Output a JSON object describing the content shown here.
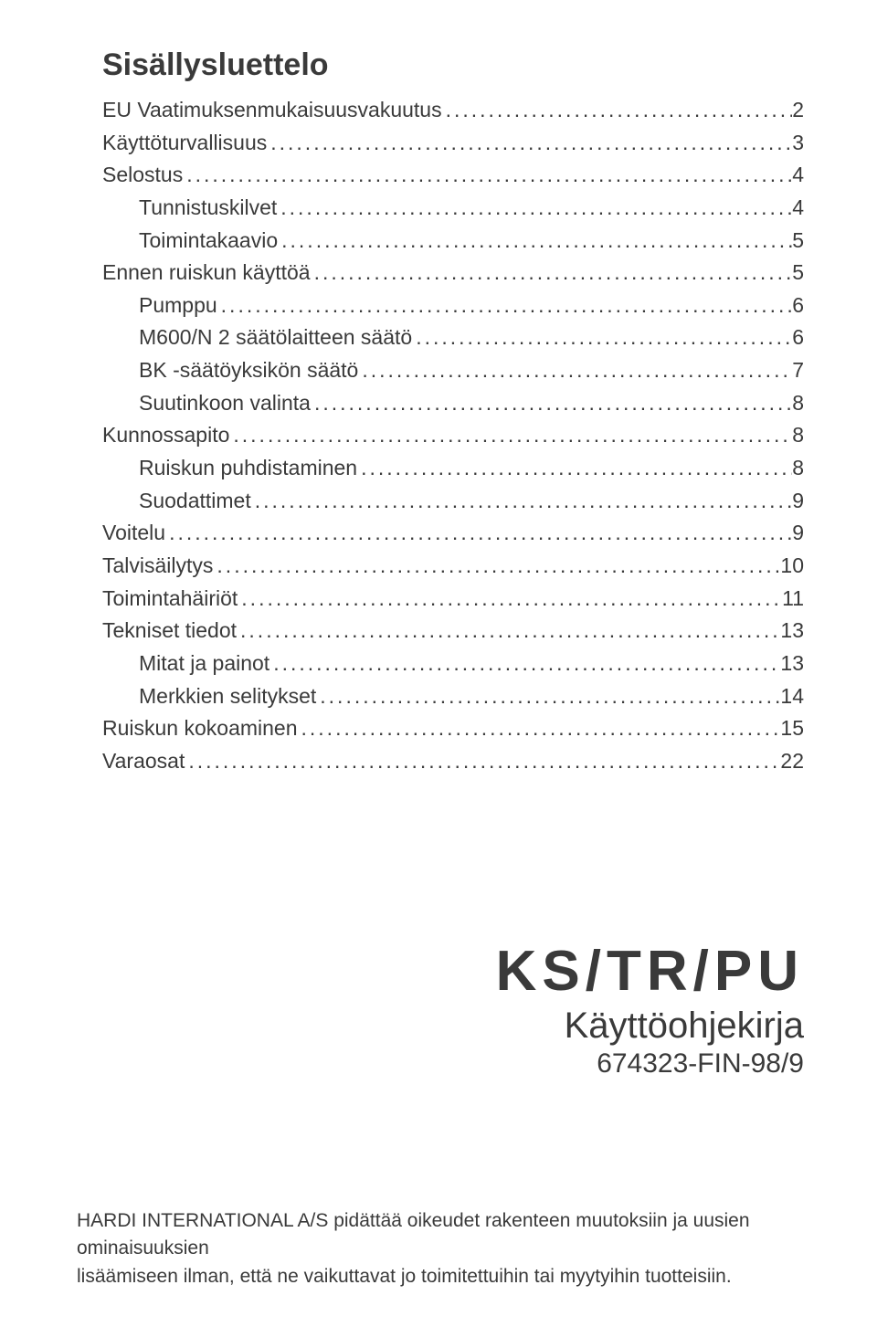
{
  "toc": {
    "title": "Sisällysluettelo",
    "entries": [
      {
        "label": "EU Vaatimuksenmukaisuusvakuutus",
        "page": "2",
        "indent": false
      },
      {
        "label": "Käyttöturvallisuus",
        "page": "3",
        "indent": false
      },
      {
        "label": "Selostus",
        "page": "4",
        "indent": false
      },
      {
        "label": "Tunnistuskilvet",
        "page": "4",
        "indent": true
      },
      {
        "label": "Toimintakaavio",
        "page": "5",
        "indent": true
      },
      {
        "label": "Ennen ruiskun käyttöä",
        "page": "5",
        "indent": false
      },
      {
        "label": "Pumppu",
        "page": "6",
        "indent": true
      },
      {
        "label": "M600/N 2 säätölaitteen säätö",
        "page": "6",
        "indent": true
      },
      {
        "label": "BK -säätöyksikön säätö",
        "page": "7",
        "indent": true
      },
      {
        "label": "Suutinkoon valinta",
        "page": "8",
        "indent": true
      },
      {
        "label": "Kunnossapito",
        "page": "8",
        "indent": false
      },
      {
        "label": "Ruiskun puhdistaminen",
        "page": "8",
        "indent": true
      },
      {
        "label": "Suodattimet",
        "page": "9",
        "indent": true
      },
      {
        "label": "Voitelu",
        "page": "9",
        "indent": false
      },
      {
        "label": "Talvisäilytys",
        "page": "10",
        "indent": false
      },
      {
        "label": "Toimintahäiriöt",
        "page": "11",
        "indent": false
      },
      {
        "label": "Tekniset tiedot",
        "page": "13",
        "indent": false
      },
      {
        "label": "Mitat ja painot",
        "page": "13",
        "indent": true
      },
      {
        "label": "Merkkien selitykset",
        "page": "14",
        "indent": true
      },
      {
        "label": "Ruiskun kokoaminen",
        "page": "15",
        "indent": false
      },
      {
        "label": "Varaosat",
        "page": "22",
        "indent": false
      }
    ]
  },
  "product": {
    "code": "KS/TR/PU",
    "subtitle": "Käyttöohjekirja",
    "docnum": "674323-FIN-98/9"
  },
  "footer": {
    "line1": "HARDI INTERNATIONAL A/S pidättää oikeudet rakenteen muutoksiin ja uusien ominaisuuksien",
    "line2": "lisäämiseen ilman, että ne vaikuttavat jo toimitettuihin tai myytyihin tuotteisiin."
  },
  "style": {
    "text_color": "#3a3a3a",
    "background_color": "#ffffff",
    "title_fontsize": 34,
    "toc_fontsize": 23,
    "product_code_fontsize": 62,
    "product_subtitle_fontsize": 40,
    "product_docnum_fontsize": 30,
    "footer_fontsize": 21,
    "dot_fill": "...................................................................................................."
  }
}
